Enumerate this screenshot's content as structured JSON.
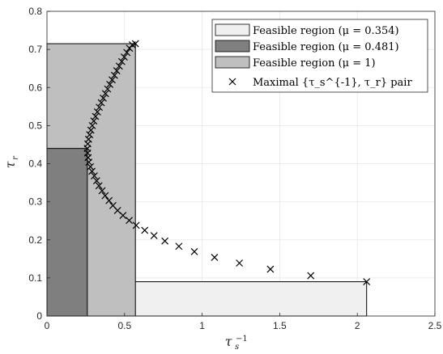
{
  "chart_data": {
    "type": "scatter",
    "xlabel": "τ_s^{-1}",
    "ylabel": "τ_r",
    "xlim": [
      0,
      2.5
    ],
    "ylim": [
      0,
      0.8
    ],
    "xticks": [
      "0",
      "0.5",
      "1",
      "1.5",
      "2",
      "2.5"
    ],
    "yticks": [
      "0",
      "0.1",
      "0.2",
      "0.3",
      "0.4",
      "0.5",
      "0.6",
      "0.7",
      "0.8"
    ],
    "grid": true,
    "legend_position": "top-right",
    "regions": [
      {
        "label_prefix": "Feasible region ",
        "mu_text": "(μ = 0.354)",
        "x": [
          0,
          2.06
        ],
        "y": [
          0,
          0.09
        ],
        "color": "#f0f0f0"
      },
      {
        "label_prefix": "Feasible region ",
        "mu_text": "(μ = 0.481)",
        "x": [
          0,
          0.26
        ],
        "y": [
          0,
          0.44
        ],
        "color": "#7f7f7f"
      },
      {
        "label_prefix": "Feasible region ",
        "mu_text": "(μ = 1)",
        "x": [
          0,
          0.57
        ],
        "y": [
          0,
          0.715
        ],
        "color": "#bfbfbf"
      }
    ],
    "series": [
      {
        "name": "Maximal {τ_s^{-1}, τ_r} pair",
        "marker": "x",
        "color": "#000000",
        "points": [
          [
            2.06,
            0.09
          ],
          [
            1.7,
            0.106
          ],
          [
            1.44,
            0.123
          ],
          [
            1.24,
            0.139
          ],
          [
            1.08,
            0.154
          ],
          [
            0.95,
            0.169
          ],
          [
            0.85,
            0.183
          ],
          [
            0.76,
            0.197
          ],
          [
            0.69,
            0.211
          ],
          [
            0.63,
            0.225
          ],
          [
            0.575,
            0.238
          ],
          [
            0.53,
            0.251
          ],
          [
            0.49,
            0.264
          ],
          [
            0.455,
            0.277
          ],
          [
            0.425,
            0.29
          ],
          [
            0.4,
            0.303
          ],
          [
            0.375,
            0.316
          ],
          [
            0.355,
            0.329
          ],
          [
            0.335,
            0.342
          ],
          [
            0.32,
            0.355
          ],
          [
            0.305,
            0.368
          ],
          [
            0.29,
            0.38
          ],
          [
            0.28,
            0.392
          ],
          [
            0.27,
            0.404
          ],
          [
            0.265,
            0.416
          ],
          [
            0.262,
            0.428
          ],
          [
            0.26,
            0.44
          ],
          [
            0.263,
            0.452
          ],
          [
            0.268,
            0.464
          ],
          [
            0.275,
            0.476
          ],
          [
            0.283,
            0.488
          ],
          [
            0.292,
            0.5
          ],
          [
            0.302,
            0.512
          ],
          [
            0.313,
            0.524
          ],
          [
            0.325,
            0.536
          ],
          [
            0.337,
            0.548
          ],
          [
            0.35,
            0.56
          ],
          [
            0.363,
            0.572
          ],
          [
            0.377,
            0.584
          ],
          [
            0.391,
            0.596
          ],
          [
            0.405,
            0.608
          ],
          [
            0.42,
            0.62
          ],
          [
            0.435,
            0.632
          ],
          [
            0.45,
            0.644
          ],
          [
            0.466,
            0.656
          ],
          [
            0.482,
            0.668
          ],
          [
            0.498,
            0.68
          ],
          [
            0.515,
            0.692
          ],
          [
            0.532,
            0.703
          ],
          [
            0.55,
            0.712
          ],
          [
            0.57,
            0.715
          ]
        ]
      }
    ]
  }
}
